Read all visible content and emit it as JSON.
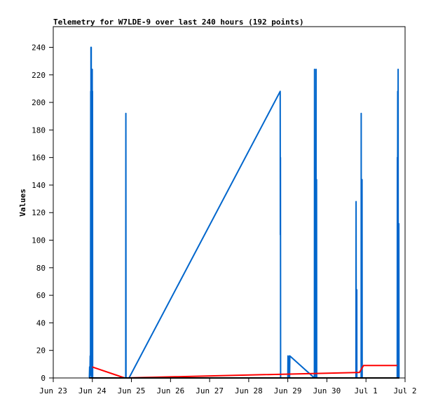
{
  "chart_data": {
    "type": "line",
    "title": "Telemetry for W7LDE-9 over last 240 hours (192 points)",
    "xlabel": "",
    "ylabel": "Values",
    "x_unit": "date",
    "xlim": [
      "Jun 23 00:00",
      "Jul 2 00:00"
    ],
    "ylim": [
      0,
      255
    ],
    "x_ticks": [
      "Jun 23",
      "Jun 24",
      "Jun 25",
      "Jun 26",
      "Jun 27",
      "Jun 28",
      "Jun 29",
      "Jun 30",
      "Jul 1",
      "Jul 2"
    ],
    "y_ticks": [
      0,
      20,
      40,
      60,
      80,
      100,
      120,
      140,
      160,
      180,
      200,
      220,
      240
    ],
    "grid": false,
    "legend": "none",
    "series": [
      {
        "color": "#0066cc",
        "points": [
          [
            "Jun 23 22:10",
            0
          ],
          [
            "Jun 23 22:20",
            8
          ],
          [
            "Jun 23 22:30",
            0
          ],
          [
            "Jun 23 22:40",
            16
          ],
          [
            "Jun 23 22:50",
            2
          ],
          [
            "Jun 23 23:00",
            208
          ],
          [
            "Jun 23 23:05",
            4
          ],
          [
            "Jun 23 23:10",
            240
          ],
          [
            "Jun 23 23:20",
            240
          ],
          [
            "Jun 23 23:25",
            6
          ],
          [
            "Jun 23 23:30",
            80
          ],
          [
            "Jun 23 23:35",
            0
          ],
          [
            "Jun 23 23:40",
            48
          ],
          [
            "Jun 23 23:45",
            0
          ],
          [
            "Jun 23 23:55",
            224
          ],
          [
            "Jun 24 00:00",
            0
          ],
          [
            "Jun 24 00:05",
            208
          ],
          [
            "Jun 24 00:10",
            0
          ],
          [
            "Jun 24 20:30",
            0
          ],
          [
            "Jun 24 20:35",
            192
          ],
          [
            "Jun 24 20:40",
            0
          ],
          [
            "Jun 24 22:30",
            0
          ],
          [
            "Jun 28 19:20",
            208
          ],
          [
            "Jun 28 19:25",
            104
          ],
          [
            "Jun 28 19:30",
            160
          ],
          [
            "Jun 28 19:35",
            0
          ],
          [
            "Jun 29 00:00",
            0
          ],
          [
            "Jun 29 00:05",
            16
          ],
          [
            "Jun 29 00:10",
            0
          ],
          [
            "Jun 29 01:00",
            16
          ],
          [
            "Jun 29 01:05",
            0
          ],
          [
            "Jun 29 01:15",
            16
          ],
          [
            "Jun 29 16:20",
            0
          ],
          [
            "Jun 29 16:25",
            224
          ],
          [
            "Jun 29 16:30",
            0
          ],
          [
            "Jun 29 17:15",
            112
          ],
          [
            "Jun 29 17:20",
            224
          ],
          [
            "Jun 29 17:25",
            0
          ],
          [
            "Jun 29 17:40",
            144
          ],
          [
            "Jun 29 17:45",
            0
          ],
          [
            "Jun 30 17:50",
            0
          ],
          [
            "Jun 30 17:55",
            128
          ],
          [
            "Jun 30 18:00",
            0
          ],
          [
            "Jun 30 18:20",
            64
          ],
          [
            "Jun 30 18:25",
            0
          ],
          [
            "Jun 30 21:00",
            0
          ],
          [
            "Jun 30 21:05",
            192
          ],
          [
            "Jun 30 21:10",
            0
          ],
          [
            "Jun 30 21:35",
            144
          ],
          [
            "Jun 30 21:40",
            0
          ],
          [
            "Jul 1 19:10",
            0
          ],
          [
            "Jul 1 19:15",
            160
          ],
          [
            "Jul 1 19:20",
            0
          ],
          [
            "Jul 1 19:30",
            208
          ],
          [
            "Jul 1 19:35",
            0
          ],
          [
            "Jul 1 19:45",
            224
          ],
          [
            "Jul 1 19:50",
            0
          ],
          [
            "Jul 1 20:10",
            112
          ],
          [
            "Jul 1 20:15",
            0
          ]
        ]
      },
      {
        "color": "#ff0000",
        "points": [
          [
            "Jun 23 23:55",
            8
          ],
          [
            "Jun 24 19:50",
            0
          ],
          [
            "Jun 30 20:00",
            4
          ],
          [
            "Jun 30 22:30",
            9
          ],
          [
            "Jul 1 19:10",
            9
          ]
        ]
      },
      {
        "color": "#000000",
        "points": [
          [
            "Jun 23 22:00",
            0
          ],
          [
            "Jul 1 20:30",
            0
          ]
        ]
      }
    ]
  }
}
